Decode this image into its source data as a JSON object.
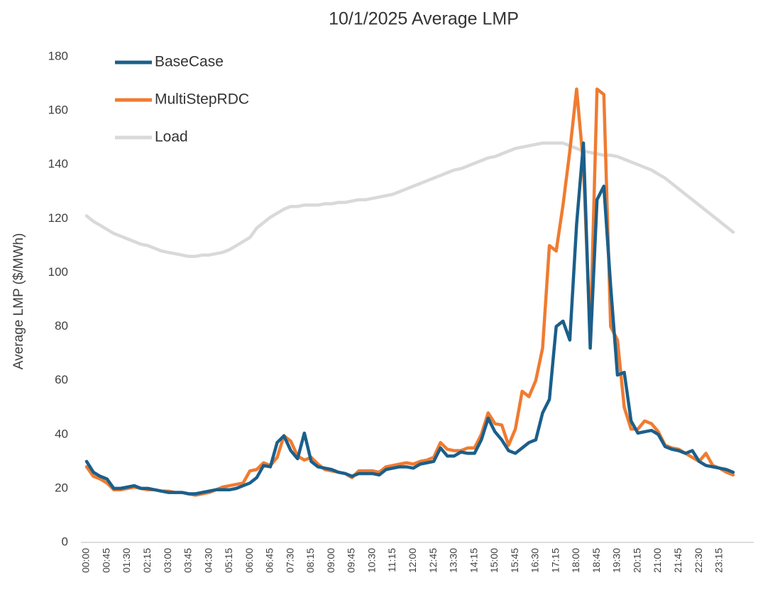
{
  "chart_data": {
    "type": "line",
    "title": "10/1/2025 Average LMP",
    "y_label": "Average LMP ($/MWh)",
    "categories": [
      "00:00",
      null,
      null,
      "00:45",
      null,
      null,
      "01:30",
      null,
      null,
      "02:15",
      null,
      null,
      "03:00",
      null,
      null,
      "03:45",
      null,
      null,
      "04:30",
      null,
      null,
      "05:15",
      null,
      null,
      "06:00",
      null,
      null,
      "06:45",
      null,
      null,
      "07:30",
      null,
      null,
      "08:15",
      null,
      null,
      "09:00",
      null,
      null,
      "09:45",
      null,
      null,
      "10:30",
      null,
      null,
      "11:15",
      null,
      null,
      "12:00",
      null,
      null,
      "12:45",
      null,
      null,
      "13:30",
      null,
      null,
      "14:15",
      null,
      null,
      "15:00",
      null,
      null,
      "15:45",
      null,
      null,
      "16:30",
      null,
      null,
      "17:15",
      null,
      null,
      "18:00",
      null,
      null,
      "18:45",
      null,
      null,
      "19:30",
      null,
      null,
      "20:15",
      null,
      null,
      "21:00",
      null,
      null,
      "21:45",
      null,
      null,
      "22:30",
      null,
      null,
      "23:15",
      null,
      null
    ],
    "series": [
      {
        "name": "BaseCase",
        "color": "#1b5f8a",
        "values": [
          30,
          26,
          24.5,
          23.5,
          20,
          20,
          20.5,
          21,
          20,
          20,
          19.5,
          19,
          18.5,
          18.5,
          18.5,
          18,
          18,
          18.5,
          19,
          19.5,
          19.5,
          19.5,
          20,
          21,
          22,
          24,
          28.5,
          28,
          37,
          39.5,
          34,
          31,
          40.5,
          30,
          28,
          27.5,
          27,
          26,
          25.5,
          24.5,
          25.5,
          25.5,
          25.5,
          25,
          27,
          27.5,
          28,
          28,
          27.5,
          29,
          29.5,
          30,
          35,
          32,
          32,
          33.5,
          33,
          33,
          38,
          46,
          41,
          38,
          34,
          33,
          35,
          37,
          38,
          48,
          53,
          80,
          82,
          75,
          118,
          148,
          72,
          127,
          132,
          95,
          62,
          63,
          45,
          40.5,
          41,
          41.5,
          40,
          35.5,
          34.5,
          34,
          33,
          34,
          30,
          28.5,
          28,
          27.5,
          27,
          26
        ]
      },
      {
        "name": "MultiStepRDC",
        "color": "#f07b30",
        "values": [
          28,
          24.5,
          23.5,
          22,
          19.5,
          19.5,
          20,
          20.5,
          20,
          19.5,
          19.5,
          19,
          19,
          18.5,
          18.5,
          18,
          17.5,
          18,
          18.5,
          19.5,
          20.5,
          21,
          21.5,
          22,
          26.5,
          27,
          29.5,
          28.5,
          31.5,
          39.5,
          37.5,
          32,
          30.5,
          31.5,
          29,
          27,
          26.5,
          26,
          25.5,
          24,
          26.5,
          26.5,
          26.5,
          26,
          28,
          28.5,
          29,
          29.5,
          29,
          30,
          30.5,
          31.5,
          37,
          34.5,
          34,
          34,
          35,
          35,
          40,
          48,
          44,
          43.5,
          36,
          42,
          56,
          54,
          60,
          72,
          110,
          108,
          125,
          145,
          168,
          140,
          76,
          168,
          166,
          80,
          75,
          50,
          42,
          42,
          45,
          44,
          41,
          36,
          35,
          34.5,
          33,
          31.5,
          30,
          33,
          28.5,
          27.5,
          26,
          25
        ]
      },
      {
        "name": "Load",
        "color": "#d9d9d9",
        "values": [
          121,
          119,
          117.5,
          116,
          114.5,
          113.5,
          112.5,
          111.5,
          110.5,
          110,
          109,
          108,
          107.5,
          107,
          106.5,
          106,
          106,
          106.5,
          106.5,
          107,
          107.5,
          108.5,
          110,
          111.5,
          113,
          116.5,
          118.5,
          120.5,
          122,
          123.5,
          124.5,
          124.5,
          125,
          125,
          125,
          125.5,
          125.5,
          126,
          126,
          126.5,
          127,
          127,
          127.5,
          128,
          128.5,
          129,
          130,
          131,
          132,
          133,
          134,
          135,
          136,
          137,
          138,
          138.5,
          139.5,
          140.5,
          141.5,
          142.5,
          143,
          144,
          145,
          146,
          146.5,
          147,
          147.5,
          148,
          148,
          148,
          148,
          147,
          146,
          145,
          144.5,
          144,
          143.5,
          143.5,
          143,
          142,
          141,
          140,
          139,
          138,
          136.5,
          135,
          133,
          131,
          129,
          127,
          125,
          123,
          121,
          119,
          117,
          115
        ]
      }
    ],
    "ylim": [
      0,
      180
    ],
    "yticks": [
      0,
      20,
      40,
      60,
      80,
      100,
      120,
      140,
      160,
      180
    ],
    "grid": false,
    "legend": "top-left"
  }
}
